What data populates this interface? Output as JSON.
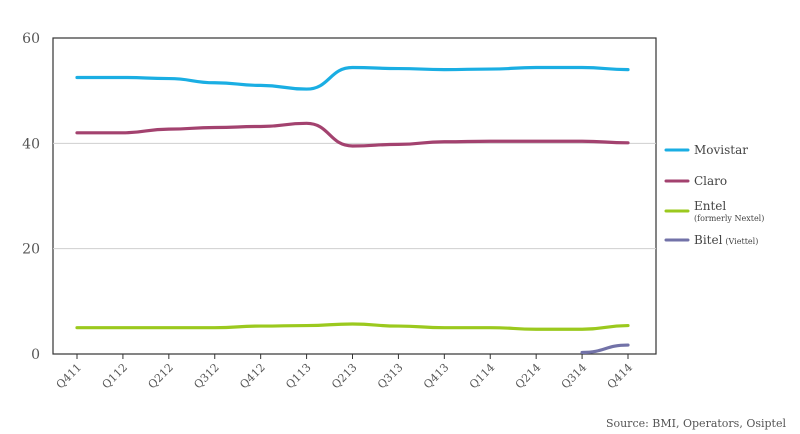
{
  "chart_data": {
    "type": "line",
    "title": "",
    "xlabel": "",
    "ylabel": "",
    "ylim": [
      0,
      60
    ],
    "yticks": [
      0,
      20,
      40,
      60
    ],
    "grid": "horizontal",
    "legend_position": "right",
    "categories": [
      "Q411",
      "Q112",
      "Q212",
      "Q312",
      "Q412",
      "Q113",
      "Q213",
      "Q313",
      "Q413",
      "Q114",
      "Q214",
      "Q314",
      "Q414"
    ],
    "series": [
      {
        "name": "Movistar",
        "color": "#1aaee3",
        "values": [
          52.5,
          52.5,
          52.3,
          51.5,
          51.0,
          50.3,
          54.4,
          54.2,
          54.0,
          54.1,
          54.4,
          54.4,
          54.0
        ]
      },
      {
        "name": "Claro",
        "color": "#a3426f",
        "values": [
          42.0,
          42.0,
          42.7,
          43.0,
          43.2,
          43.8,
          39.5,
          39.8,
          40.3,
          40.4,
          40.4,
          40.4,
          40.1
        ]
      },
      {
        "name": "Entel",
        "sublabel": "(formerly Nextel)",
        "color": "#9bc91e",
        "values": [
          5.0,
          5.0,
          5.0,
          5.0,
          5.3,
          5.4,
          5.7,
          5.3,
          5.0,
          5.0,
          4.7,
          4.7,
          5.4
        ]
      },
      {
        "name": "Bitel",
        "sublabel": "(Viettel)",
        "color": "#7272a8",
        "values": [
          null,
          null,
          null,
          null,
          null,
          null,
          null,
          null,
          null,
          null,
          null,
          0.3,
          1.7
        ]
      }
    ],
    "source": "Source: BMI, Operators, Osiptel"
  }
}
